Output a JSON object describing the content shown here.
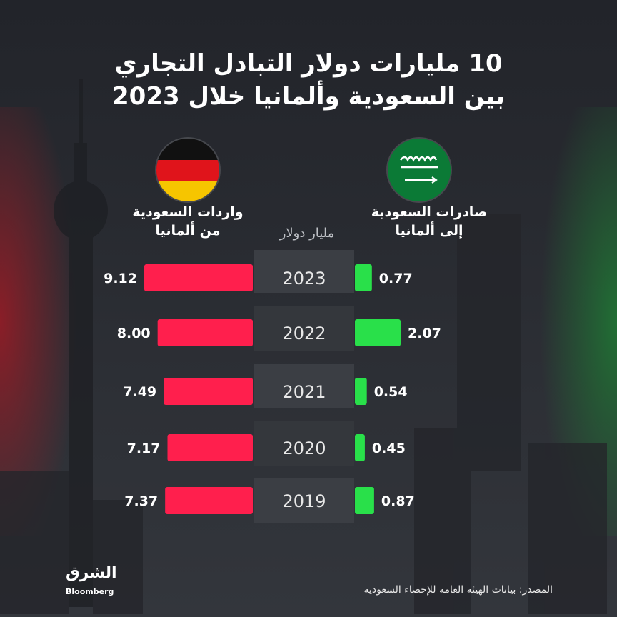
{
  "title_line1": "10 مليارات دولار التبادل التجاري",
  "title_line2": "بين السعودية وألمانيا خلال 2023",
  "imports_label_line1": "واردات السعودية",
  "imports_label_line2": "من ألمانيا",
  "exports_label_line1": "صادرات السعودية",
  "exports_label_line2": "إلى ألمانيا",
  "unit_label": "مليار دولار",
  "source": "المصدر: بيانات الهيئة العامة للإحصاء السعودية",
  "logo_arabic": "الشرق",
  "logo_english": "Bloomberg",
  "colors": {
    "imports_bar": "#ff1f4d",
    "exports_bar": "#29e04a",
    "year_panel": "#3a3d43"
  },
  "chart_data": {
    "type": "bar",
    "categories": [
      "2023",
      "2022",
      "2021",
      "2020",
      "2019"
    ],
    "series": [
      {
        "name": "واردات السعودية من ألمانيا",
        "values": [
          9.12,
          8.0,
          7.49,
          7.17,
          7.37
        ]
      },
      {
        "name": "صادرات السعودية إلى ألمانيا",
        "values": [
          0.77,
          2.07,
          0.54,
          0.45,
          0.87
        ]
      }
    ],
    "value_labels_imports": [
      "9.12",
      "8.00",
      "7.49",
      "7.17",
      "7.37"
    ],
    "value_labels_exports": [
      "0.77",
      "2.07",
      "0.54",
      "0.45",
      "0.87"
    ],
    "ylabel": "مليار دولار"
  }
}
